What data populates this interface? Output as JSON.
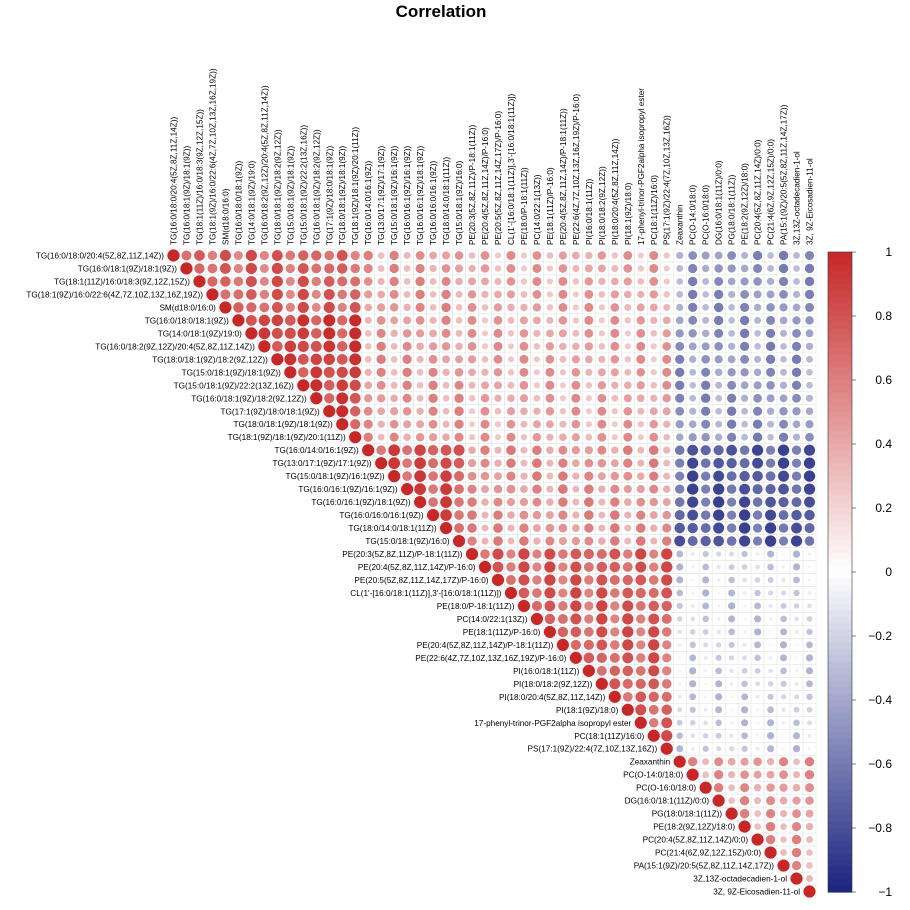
{
  "chart_data": {
    "type": "heatmap",
    "subtype": "correlation upper-triangle circle plot",
    "title": "Correlation",
    "variables": [
      "TG(16:0/18:0/20:4(5Z,8Z,11Z,14Z))",
      "TG(16:0/18:1(9Z)/18:1(9Z))",
      "TG(18:1(11Z)/16:0/18:3(9Z,12Z,15Z))",
      "TG(18:1(9Z)/16:0/22:6(4Z,7Z,10Z,13Z,16Z,19Z))",
      "SM(d18:0/16:0)",
      "TG(16:0/18:0/18:1(9Z))",
      "TG(14:0/18:1(9Z)/19:0)",
      "TG(16:0/18:2(9Z,12Z)/20:4(5Z,8Z,11Z,14Z))",
      "TG(18:0/18:1(9Z)/18:2(9Z,12Z))",
      "TG(15:0/18:1(9Z)/18:1(9Z))",
      "TG(15:0/18:1(9Z)/22:2(13Z,16Z))",
      "TG(16:0/18:1(9Z)/18:2(9Z,12Z))",
      "TG(17:1(9Z)/18:0/18:1(9Z))",
      "TG(18:0/18:1(9Z)/18:1(9Z))",
      "TG(18:1(9Z)/18:1(9Z)/20:1(11Z))",
      "TG(16:0/14:0/16:1(9Z))",
      "TG(13:0/17:1(9Z)/17:1(9Z))",
      "TG(15:0/18:1(9Z)/16:1(9Z))",
      "TG(16:0/16:1(9Z)/16:1(9Z))",
      "TG(16:0/16:1(9Z)/18:1(9Z))",
      "TG(16:0/16:0/16:1(9Z))",
      "TG(18:0/14:0/18:1(11Z))",
      "TG(15:0/18:1(9Z)/16:0)",
      "PE(20:3(5Z,8Z,11Z)/P-18:1(11Z))",
      "PE(20:4(5Z,8Z,11Z,14Z)/P-16:0)",
      "PE(20:5(5Z,8Z,11Z,14Z,17Z)/P-16:0)",
      "CL(1'-[16:0/18:1(11Z)],3'-[16:0/18:1(11Z)])",
      "PE(18:0/P-18:1(11Z))",
      "PC(14:0/22:1(13Z))",
      "PE(18:1(11Z)/P-16:0)",
      "PE(20:4(5Z,8Z,11Z,14Z)/P-18:1(11Z))",
      "PE(22:6(4Z,7Z,10Z,13Z,16Z,19Z)/P-16:0)",
      "PI(16:0/18:1(11Z))",
      "PI(18:0/18:2(9Z,12Z))",
      "PI(18:0/20:4(5Z,8Z,11Z,14Z))",
      "PI(18:1(9Z)/18:0)",
      "17-phenyl-trinor-PGF2alpha isopropyl ester",
      "PC(18:1(11Z)/16:0)",
      "PS(17:1(9Z)/22:4(7Z,10Z,13Z,16Z))",
      "Zeaxanthin",
      "PC(O-14:0/18:0)",
      "PC(O-16:0/18:0)",
      "DG(16:0/18:1(11Z)/0:0)",
      "PG(18:0/18:1(11Z))",
      "PE(18:2(9Z,12Z)/18:0)",
      "PC(20:4(5Z,8Z,11Z,14Z)/0:0)",
      "PC(21:4(6Z,9Z,12Z,15Z)/0:0)",
      "PA(15:1(9Z)/20:5(5Z,8Z,11Z,14Z,17Z))",
      "3Z,13Z-octadecadien-1-ol",
      "3Z, 9Z-Eicosadien-11-ol"
    ],
    "groups": [
      {
        "name": "",
        "start": 0,
        "end": 14,
        "within": 0.7,
        "strong": [
          [
            5,
            14,
            0.85
          ]
        ]
      },
      {
        "name": "",
        "start": 15,
        "end": 22,
        "within": 0.78
      },
      {
        "name": "",
        "start": 23,
        "end": 38,
        "within": 0.72
      },
      {
        "name": "",
        "start": 39,
        "end": 49,
        "within": 0.45
      }
    ],
    "between_groups": [
      {
        "groups": [
          0,
          1
        ],
        "r": 0.45
      },
      {
        "groups": [
          0,
          2
        ],
        "r": 0.4
      },
      {
        "groups": [
          1,
          2
        ],
        "r": 0.48
      },
      {
        "groups": [
          0,
          3
        ],
        "r": -0.45
      },
      {
        "groups": [
          1,
          3
        ],
        "r": -0.72
      },
      {
        "groups": [
          2,
          3
        ],
        "r": -0.2
      }
    ],
    "colorbar": {
      "range": [
        -1,
        1
      ],
      "ticks": [
        "1",
        "0.8",
        "0.6",
        "0.4",
        "0.2",
        "0",
        "−0.2",
        "−0.4",
        "−0.6",
        "−0.8",
        "−1"
      ],
      "colors": {
        "negative": "#1a237e",
        "mid": "#ffffff",
        "positive": "#c62828"
      }
    },
    "diagonal": 1,
    "grid": true
  }
}
